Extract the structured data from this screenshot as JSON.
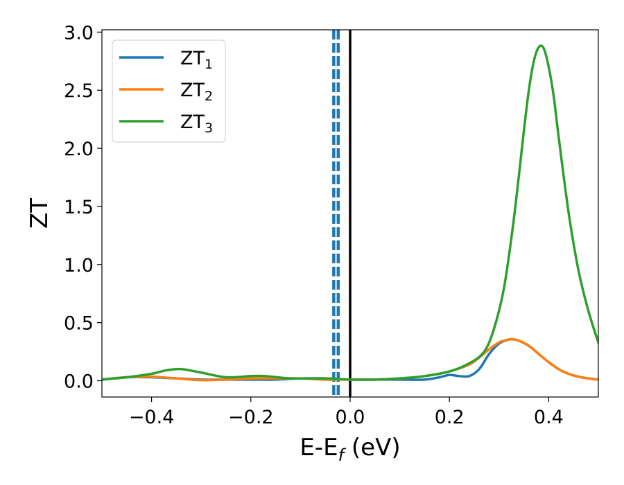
{
  "chart_data": {
    "type": "line",
    "xlabel": "E-E",
    "xlabel_sub": "f",
    "xlabel_unit": " (eV)",
    "ylabel": "ZT",
    "xlim": [
      -0.5,
      0.5
    ],
    "ylim": [
      -0.14,
      3.02
    ],
    "xticks": [
      -0.4,
      -0.2,
      0.0,
      0.2,
      0.4
    ],
    "xtick_labels": [
      "−0.4",
      "−0.2",
      "0.0",
      "0.2",
      "0.4"
    ],
    "yticks": [
      0.0,
      0.5,
      1.0,
      1.5,
      2.0,
      2.5,
      3.0
    ],
    "ytick_labels": [
      "0.0",
      "0.5",
      "1.0",
      "1.5",
      "2.0",
      "2.5",
      "3.0"
    ],
    "grid": false,
    "legend_position": "top-left",
    "series": [
      {
        "name": "ZT",
        "name_sub": "1",
        "color": "#1f77b4",
        "x": [
          -0.5,
          -0.45,
          -0.4,
          -0.35,
          -0.3,
          -0.25,
          -0.2,
          -0.15,
          -0.1,
          -0.05,
          0.0,
          0.05,
          0.1,
          0.15,
          0.18,
          0.2,
          0.22,
          0.24,
          0.26,
          0.28,
          0.3,
          0.32,
          0.33,
          0.34,
          0.36,
          0.38,
          0.4,
          0.42,
          0.44,
          0.46,
          0.48,
          0.5
        ],
        "y": [
          0.01,
          0.03,
          0.03,
          0.02,
          0.01,
          0.01,
          0.01,
          0.01,
          0.02,
          0.02,
          0.01,
          0.01,
          0.01,
          0.01,
          0.03,
          0.05,
          0.04,
          0.04,
          0.1,
          0.23,
          0.32,
          0.355,
          0.355,
          0.345,
          0.3,
          0.23,
          0.16,
          0.1,
          0.06,
          0.035,
          0.02,
          0.01
        ]
      },
      {
        "name": "ZT",
        "name_sub": "2",
        "color": "#ff7f0e",
        "x": [
          -0.5,
          -0.45,
          -0.4,
          -0.35,
          -0.3,
          -0.25,
          -0.2,
          -0.15,
          -0.1,
          -0.05,
          0.0,
          0.05,
          0.1,
          0.15,
          0.2,
          0.24,
          0.26,
          0.28,
          0.3,
          0.32,
          0.33,
          0.34,
          0.36,
          0.38,
          0.4,
          0.42,
          0.44,
          0.46,
          0.48,
          0.5
        ],
        "y": [
          0.01,
          0.03,
          0.035,
          0.02,
          0.005,
          0.01,
          0.02,
          0.02,
          0.02,
          0.01,
          0.01,
          0.01,
          0.02,
          0.04,
          0.08,
          0.14,
          0.2,
          0.27,
          0.33,
          0.355,
          0.355,
          0.345,
          0.3,
          0.23,
          0.16,
          0.1,
          0.06,
          0.035,
          0.02,
          0.01
        ]
      },
      {
        "name": "ZT",
        "name_sub": "3",
        "color": "#2ca02c",
        "x": [
          -0.5,
          -0.45,
          -0.4,
          -0.37,
          -0.34,
          -0.3,
          -0.25,
          -0.2,
          -0.17,
          -0.12,
          -0.05,
          0.0,
          0.05,
          0.1,
          0.15,
          0.2,
          0.24,
          0.27,
          0.29,
          0.31,
          0.33,
          0.35,
          0.36,
          0.37,
          0.38,
          0.39,
          0.4,
          0.41,
          0.42,
          0.44,
          0.46,
          0.48,
          0.5
        ],
        "y": [
          0.01,
          0.03,
          0.06,
          0.09,
          0.1,
          0.07,
          0.03,
          0.04,
          0.04,
          0.02,
          0.02,
          0.01,
          0.01,
          0.02,
          0.04,
          0.08,
          0.15,
          0.25,
          0.45,
          0.8,
          1.4,
          2.15,
          2.5,
          2.75,
          2.87,
          2.86,
          2.7,
          2.45,
          2.1,
          1.45,
          0.95,
          0.6,
          0.33
        ]
      }
    ],
    "vertical_lines": [
      {
        "x": -0.033,
        "color": "#1f77b4",
        "style": "dashed"
      },
      {
        "x": -0.024,
        "color": "#1f77b4",
        "style": "dashed"
      },
      {
        "x": 0.0,
        "color": "#000000",
        "style": "solid"
      }
    ]
  }
}
